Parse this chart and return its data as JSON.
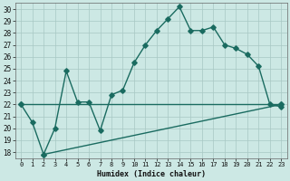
{
  "xlabel": "Humidex (Indice chaleur)",
  "bg_color": "#cce8e4",
  "grid_color": "#b8d8d4",
  "line_color": "#1a6b60",
  "xlim": [
    -0.5,
    23.5
  ],
  "ylim": [
    17.5,
    30.5
  ],
  "xticks": [
    0,
    1,
    2,
    3,
    4,
    5,
    6,
    7,
    8,
    9,
    10,
    11,
    12,
    13,
    14,
    15,
    16,
    17,
    18,
    19,
    20,
    21,
    22,
    23
  ],
  "yticks": [
    18,
    19,
    20,
    21,
    22,
    23,
    24,
    25,
    26,
    27,
    28,
    29,
    30
  ],
  "line1_x": [
    0,
    1,
    2,
    3,
    4,
    5,
    6,
    7,
    8,
    9,
    10,
    11,
    12,
    13,
    14,
    15,
    16,
    17,
    18,
    19,
    20,
    21,
    22,
    23
  ],
  "line1_y": [
    22.0,
    20.5,
    17.8,
    20.0,
    24.8,
    22.2,
    22.2,
    19.8,
    22.8,
    23.2,
    25.5,
    27.0,
    28.2,
    29.2,
    30.2,
    28.2,
    28.2,
    28.5,
    27.0,
    26.7,
    26.2,
    25.2,
    22.0,
    21.8
  ],
  "line2_x": [
    0,
    23
  ],
  "line2_y": [
    22.0,
    22.0
  ],
  "line3_x": [
    2,
    23
  ],
  "line3_y": [
    17.8,
    22.0
  ],
  "marker": "D",
  "markersize": 2.8,
  "linewidth": 1.0
}
